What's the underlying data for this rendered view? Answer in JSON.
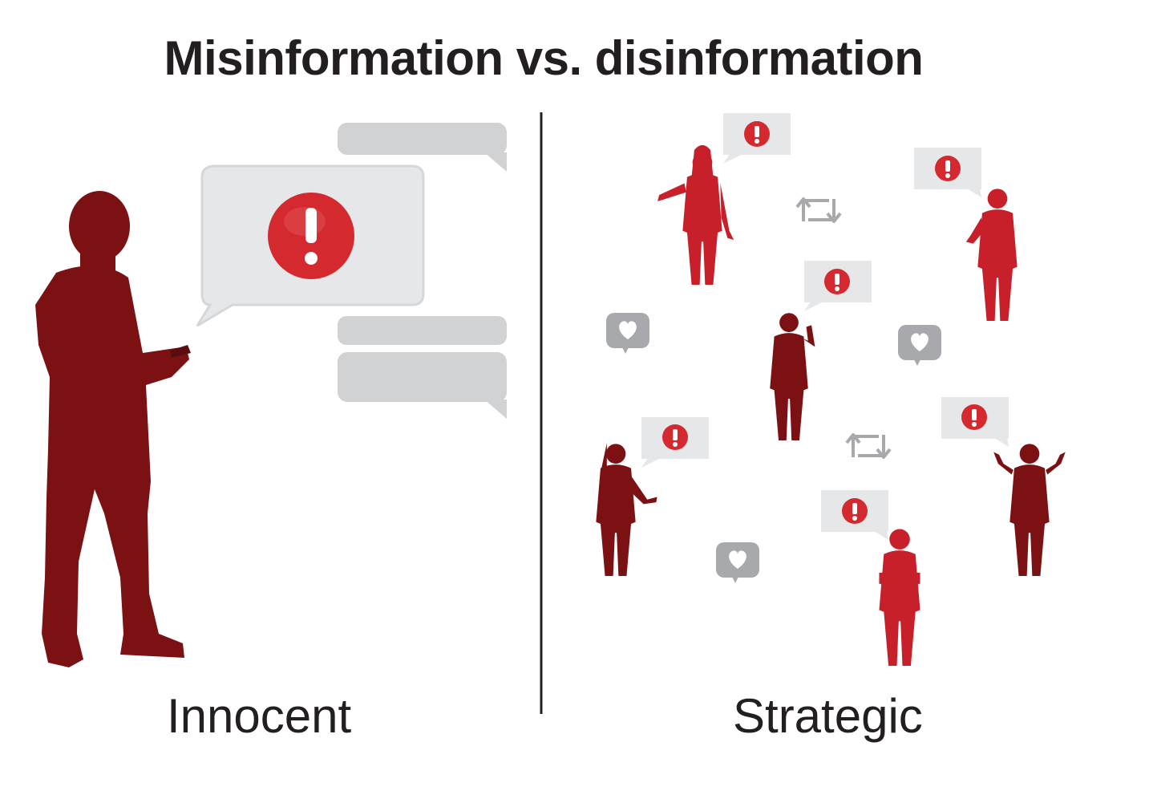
{
  "title": "Misinformation vs. disinformation",
  "left": {
    "label": "Innocent"
  },
  "right": {
    "label": "Strategic"
  },
  "colors": {
    "dark_red": "#7b1113",
    "bright_red": "#c8202a",
    "alert_red": "#d42a2f",
    "bubble_gray": "#e5e6e7",
    "bubble_stroke": "#cfd0d2",
    "icon_gray": "#a7a9ac",
    "text": "#231f20"
  },
  "icons": [
    "person-silhouette",
    "speech-bubble",
    "alert-icon",
    "retweet-icon",
    "heart-icon"
  ]
}
